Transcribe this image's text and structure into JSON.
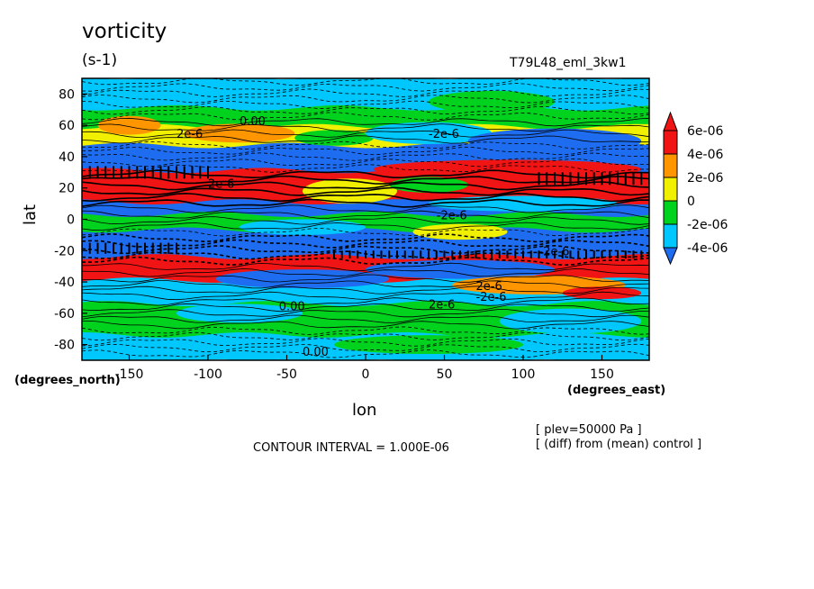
{
  "chart_data": {
    "type": "heatmap",
    "title": "vorticity",
    "units": "(s-1)",
    "run_label": "T79L48_eml_3kw1",
    "xlabel": "lon",
    "ylabel": "lat",
    "x_units_label": "(degrees_east)",
    "y_units_label": "(degrees_north)",
    "xlim": [
      -180,
      180
    ],
    "ylim": [
      -90,
      90
    ],
    "x_ticks": [
      -150,
      -100,
      -50,
      0,
      50,
      100,
      150
    ],
    "x_tick_labels": [
      "-150",
      "-100",
      "-50",
      "0",
      "50",
      "100",
      "150"
    ],
    "y_ticks": [
      80,
      60,
      40,
      20,
      0,
      -20,
      -40,
      -60,
      -80
    ],
    "y_tick_labels": [
      "80",
      "60",
      "40",
      "20",
      "0",
      "-20",
      "-40",
      "-60",
      "-80"
    ],
    "colorbar": {
      "levels": [
        -4e-06,
        -2e-06,
        0,
        2e-06,
        4e-06,
        6e-06
      ],
      "labels": [
        "-4e-06",
        "-2e-06",
        "0",
        "2e-06",
        "4e-06",
        "6e-06"
      ],
      "colors": [
        "#1e6cf0",
        "#00c8ff",
        "#00d21e",
        "#f0f000",
        "#ff9600",
        "#f01414"
      ]
    },
    "contour_interval_text": "CONTOUR INTERVAL = 1.000E-06",
    "notes": [
      "[ plev=50000 Pa ]",
      "[ (diff) from (mean) control ]"
    ],
    "contour_labels": [
      "-2e-6",
      "2e-6",
      "0.00",
      "2e-6",
      "-2e-6",
      "2e-6",
      "-2e-6",
      "0.00",
      "2e-6",
      "-2e-6",
      "0.00"
    ],
    "bands": [
      {
        "lat_from": 90,
        "lat_to": 70,
        "level": -2e-06
      },
      {
        "lat_from": 70,
        "lat_to": 58,
        "level": 0
      },
      {
        "lat_from": 58,
        "lat_to": 46,
        "level": 2e-06
      },
      {
        "lat_from": 46,
        "lat_to": 30,
        "level": -4e-06
      },
      {
        "lat_from": 30,
        "lat_to": 10,
        "level": 6e-06
      },
      {
        "lat_from": 10,
        "lat_to": 2,
        "level": -4e-06
      },
      {
        "lat_from": 2,
        "lat_to": -8,
        "level": 0
      },
      {
        "lat_from": -8,
        "lat_to": -25,
        "level": -4e-06
      },
      {
        "lat_from": -25,
        "lat_to": -40,
        "level": 6e-06
      },
      {
        "lat_from": -40,
        "lat_to": -55,
        "level": -2e-06
      },
      {
        "lat_from": -55,
        "lat_to": -75,
        "level": 0
      },
      {
        "lat_from": -75,
        "lat_to": -90,
        "level": -2e-06
      }
    ],
    "blobs": [
      {
        "lon": -150,
        "lat": 60,
        "rlon": 20,
        "rlat": 6,
        "level": 4e-06
      },
      {
        "lon": -80,
        "lat": 55,
        "rlon": 35,
        "rlat": 6,
        "level": 4e-06
      },
      {
        "lon": -20,
        "lat": 52,
        "rlon": 25,
        "rlat": 5,
        "level": 0
      },
      {
        "lon": 40,
        "lat": 55,
        "rlon": 40,
        "rlat": 7,
        "level": -2e-06
      },
      {
        "lon": 120,
        "lat": 50,
        "rlon": 55,
        "rlat": 8,
        "level": -4e-06
      },
      {
        "lon": 90,
        "lat": 32,
        "rlon": 85,
        "rlat": 6,
        "level": 6e-06
      },
      {
        "lon": -10,
        "lat": 18,
        "rlon": 30,
        "rlat": 8,
        "level": 2e-06
      },
      {
        "lon": 40,
        "lat": 22,
        "rlon": 25,
        "rlat": 5,
        "level": 0
      },
      {
        "lon": -135,
        "lat": 20,
        "rlon": 25,
        "rlat": 6,
        "level": 6e-06
      },
      {
        "lon": 100,
        "lat": 10,
        "rlon": 60,
        "rlat": 5,
        "level": -2e-06
      },
      {
        "lon": 60,
        "lat": -8,
        "rlon": 30,
        "rlat": 5,
        "level": 2e-06
      },
      {
        "lon": -40,
        "lat": -5,
        "rlon": 40,
        "rlat": 5,
        "level": -2e-06
      },
      {
        "lon": -40,
        "lat": -38,
        "rlon": 55,
        "rlat": 6,
        "level": -4e-06
      },
      {
        "lon": 60,
        "lat": -32,
        "rlon": 60,
        "rlat": 6,
        "level": -4e-06
      },
      {
        "lon": 110,
        "lat": -42,
        "rlon": 55,
        "rlat": 6,
        "level": 4e-06
      },
      {
        "lon": 150,
        "lat": -47,
        "rlon": 25,
        "rlat": 4,
        "level": 6e-06
      },
      {
        "lon": -80,
        "lat": -60,
        "rlon": 40,
        "rlat": 6,
        "level": -2e-06
      },
      {
        "lon": 130,
        "lat": -65,
        "rlon": 45,
        "rlat": 8,
        "level": -2e-06
      },
      {
        "lon": 40,
        "lat": -80,
        "rlon": 60,
        "rlat": 6,
        "level": 0
      },
      {
        "lon": -130,
        "lat": 80,
        "rlon": 35,
        "rlat": 6,
        "level": -2e-06
      },
      {
        "lon": 80,
        "lat": 75,
        "rlon": 40,
        "rlat": 7,
        "level": 0
      }
    ]
  }
}
